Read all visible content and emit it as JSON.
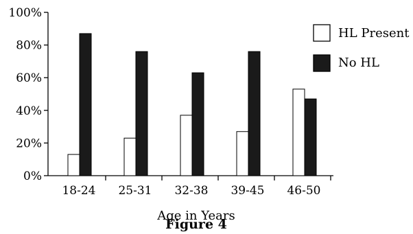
{
  "chart_data": {
    "type": "bar",
    "categories": [
      "18-24",
      "25-31",
      "32-38",
      "39-45",
      "46-50"
    ],
    "series": [
      {
        "name": "HL Present",
        "values": [
          13,
          23,
          37,
          27,
          53
        ],
        "color": "#ffffff"
      },
      {
        "name": "No HL",
        "values": [
          87,
          76,
          63,
          76,
          47
        ],
        "color": "#1a1a1a"
      }
    ],
    "yticks": [
      "0%",
      "20%",
      "40%",
      "60%",
      "80%",
      "100%"
    ],
    "ylim": [
      0,
      100
    ],
    "xlabel": "Age in Years",
    "ylabel": "",
    "title": "",
    "caption": "Figure 4",
    "legend_position": "top-right",
    "grid": false
  }
}
